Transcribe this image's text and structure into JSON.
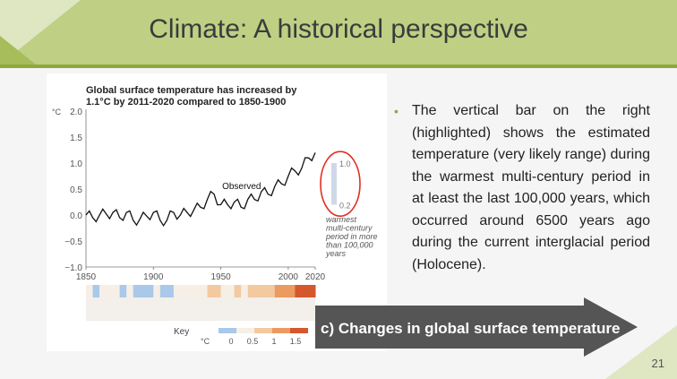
{
  "slide": {
    "title": "Climate: A historical perspective",
    "page_number": "21",
    "bullet_text": "The vertical bar on the right (highlighted) shows the estimated temperature (very likely range) during the warmest multi-century period in at least the last 100,000 years, which occurred around 6500 years ago during the current interglacial period (Holocene).",
    "arrow_label": "c) Changes in global surface temperature"
  },
  "colors": {
    "title_bar": "#bfcf84",
    "accent": "#8fa83c",
    "arrow": "#555555",
    "highlight_circle": "#e03020"
  },
  "chart_data": {
    "type": "line",
    "title": "Global surface temperature has increased by 1.1°C by 2011-2020 compared to 1850-1900",
    "unit_label": "°C",
    "ylim": [
      -1.0,
      2.0
    ],
    "xlim": [
      1850,
      2020
    ],
    "yticks": [
      "2.0",
      "1.5",
      "1.0",
      "0.5",
      "0.0",
      "−0.5",
      "−1.0"
    ],
    "xticks": [
      "1850",
      "1900",
      "1950",
      "2000",
      "2020"
    ],
    "series": [
      {
        "name": "Observed",
        "x": [
          1850,
          1855,
          1860,
          1865,
          1870,
          1875,
          1880,
          1885,
          1890,
          1895,
          1900,
          1905,
          1910,
          1915,
          1920,
          1925,
          1930,
          1935,
          1940,
          1945,
          1950,
          1955,
          1960,
          1965,
          1970,
          1975,
          1980,
          1985,
          1990,
          1995,
          2000,
          2005,
          2010,
          2015,
          2020
        ],
        "values": [
          0.0,
          -0.05,
          0.0,
          0.02,
          0.05,
          -0.05,
          0.05,
          -0.1,
          -0.08,
          -0.02,
          0.05,
          -0.1,
          -0.1,
          0.05,
          0.0,
          0.05,
          0.1,
          0.15,
          0.3,
          0.4,
          0.2,
          0.2,
          0.25,
          0.15,
          0.3,
          0.3,
          0.45,
          0.4,
          0.55,
          0.6,
          0.75,
          0.85,
          0.9,
          1.1,
          1.2
        ]
      }
    ],
    "range_bar": {
      "low": 0.2,
      "high": 1.0,
      "low_label": "0.2",
      "high_label": "1.0",
      "caption": [
        "warmest",
        "multi-century",
        "period in more",
        "than 100,000",
        "years"
      ]
    },
    "stripes_key": {
      "label": "Key",
      "unit": "°C",
      "ticks": [
        "0",
        "0.5",
        "1",
        "1.5"
      ]
    }
  }
}
